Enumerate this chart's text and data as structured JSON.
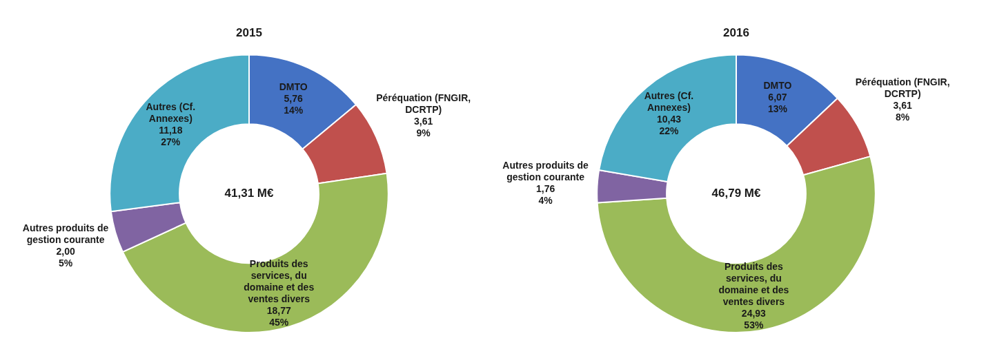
{
  "chart_data": [
    {
      "type": "donut",
      "title": "2015",
      "categories": [
        "DMTO",
        "Péréquation (FNGIR, DCRTP)",
        "Produits des services, du domaine et des ventes divers",
        "Autres produits de gestion courante",
        "Autres (Cf. Annexes)"
      ],
      "values": [
        5.76,
        3.61,
        18.77,
        2.0,
        11.18
      ],
      "colors": [
        "#4472c4",
        "#c0504d",
        "#9bbb59",
        "#8064a2",
        "#4bacc6"
      ],
      "value_labels": [
        "5,76 14%",
        "3,61 9%",
        "18,77 45%",
        "2,00 5%",
        "11,18 27%"
      ],
      "annotations": [
        "41,31 M€"
      ],
      "legend": false
    },
    {
      "type": "donut",
      "title": "2016",
      "categories": [
        "DMTO",
        "Péréquation (FNGIR, DCRTP)",
        "Produits des services, du domaine et des ventes divers",
        "Autres produits de gestion courante",
        "Autres (Cf. Annexes)"
      ],
      "values": [
        6.07,
        3.61,
        24.93,
        1.76,
        10.43
      ],
      "colors": [
        "#4472c4",
        "#c0504d",
        "#9bbb59",
        "#8064a2",
        "#4bacc6"
      ],
      "value_labels": [
        "6,07 13%",
        "3,61 8%",
        "24,93 53%",
        "1,76 4%",
        "10,43 22%"
      ],
      "annotations": [
        "46,79 M€"
      ],
      "legend": false
    }
  ]
}
